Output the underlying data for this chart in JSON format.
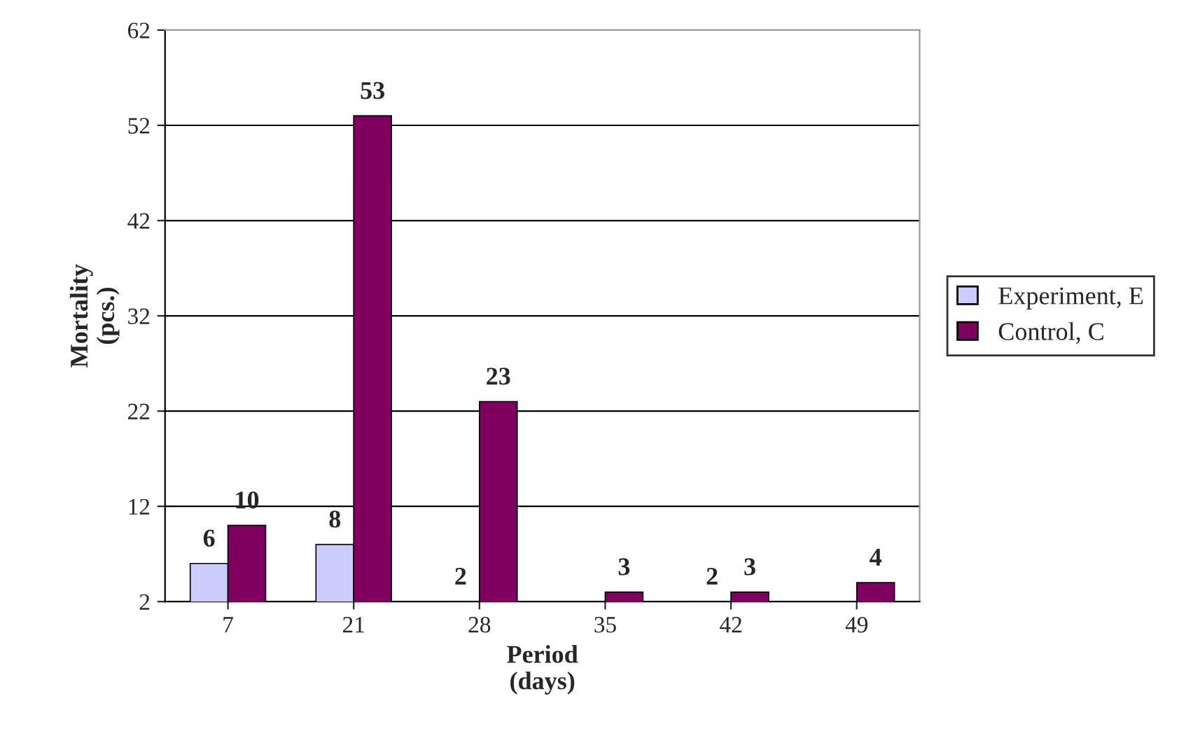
{
  "chart_data": {
    "type": "bar",
    "categories": [
      "7",
      "21",
      "28",
      "35",
      "42",
      "49"
    ],
    "series": [
      {
        "name": "Experiment, E",
        "color": "#ccccff",
        "values": [
          6,
          8,
          2,
          null,
          2,
          null
        ]
      },
      {
        "name": "Control, C",
        "color": "#800060",
        "values": [
          10,
          53,
          23,
          3,
          3,
          4
        ]
      }
    ],
    "xlabel": "Period\n(days)",
    "ylabel": "Mortality\n(pcs.)",
    "ylim": [
      2,
      62
    ],
    "yticks": [
      2,
      12,
      22,
      32,
      42,
      52,
      62
    ],
    "grid": "y",
    "legend": "right",
    "data_labels": true
  }
}
